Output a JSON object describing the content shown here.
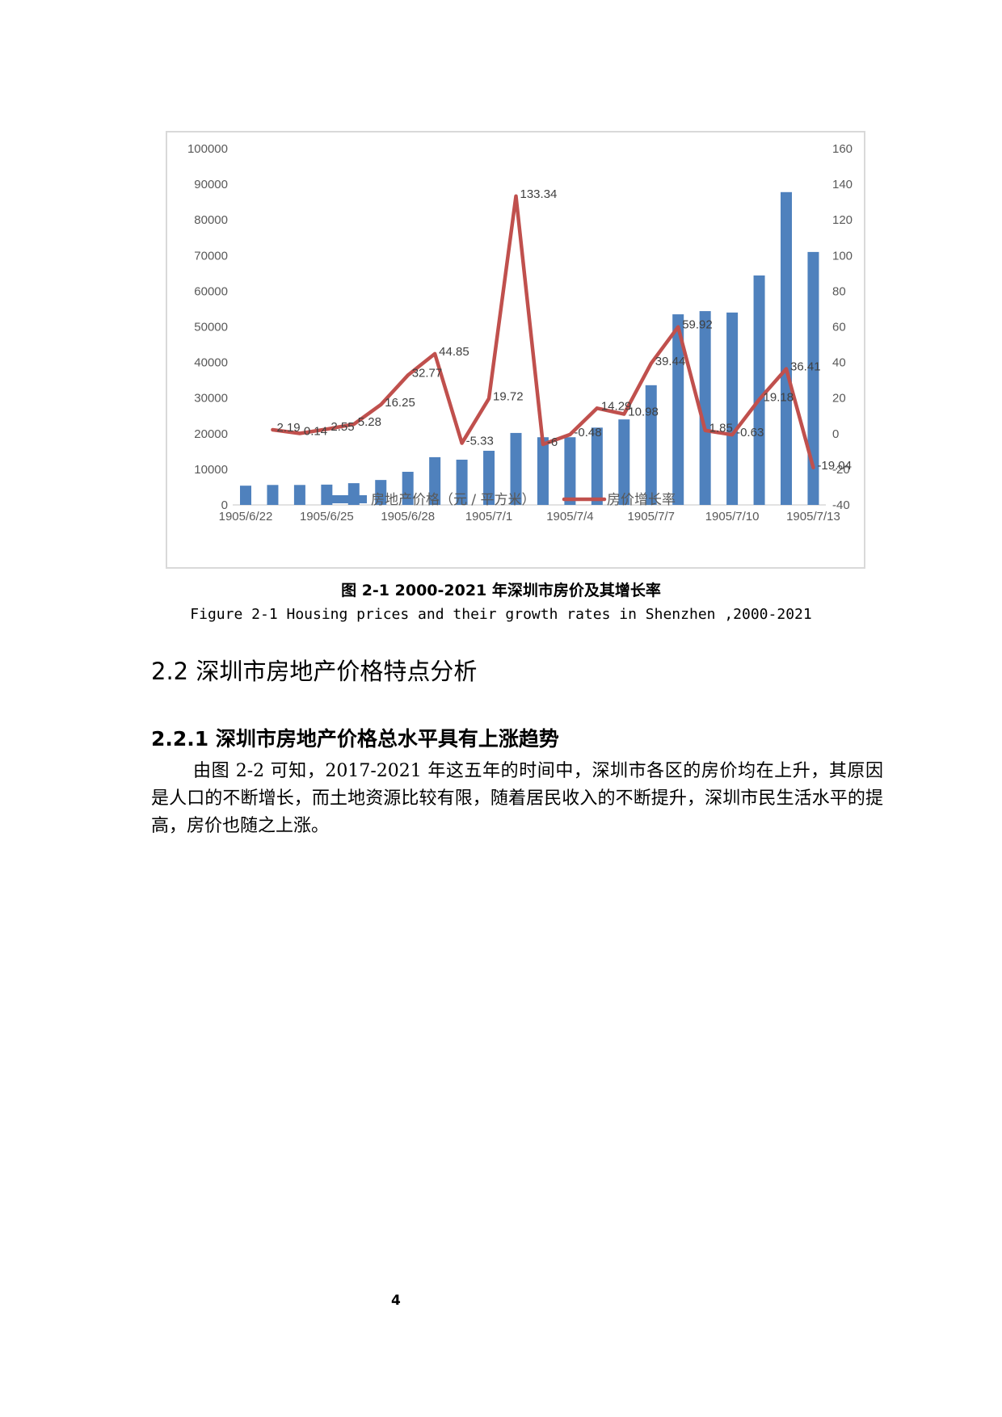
{
  "chart_data": {
    "type": "bar+line",
    "title": "",
    "categories": [
      "1905/6/22",
      "1905/6/23",
      "1905/6/24",
      "1905/6/25",
      "1905/6/26",
      "1905/6/27",
      "1905/6/28",
      "1905/6/29",
      "1905/6/30",
      "1905/7/1",
      "1905/7/2",
      "1905/7/3",
      "1905/7/4",
      "1905/7/5",
      "1905/7/6",
      "1905/7/7",
      "1905/7/8",
      "1905/7/9",
      "1905/7/10",
      "1905/7/11",
      "1905/7/12",
      "1905/7/13"
    ],
    "x_tick_labels": [
      "1905/6/22",
      "1905/6/25",
      "1905/6/28",
      "1905/7/1",
      "1905/7/4",
      "1905/7/7",
      "1905/7/10",
      "1905/7/13"
    ],
    "series": [
      {
        "name": "房地产价格（元 / 平方米）",
        "type": "bar",
        "axis": "left",
        "color": "#4f81bd",
        "values": [
          5400,
          5600,
          5600,
          5700,
          6100,
          7000,
          9300,
          13400,
          12700,
          15200,
          20200,
          19000,
          19000,
          21700,
          24000,
          33600,
          53500,
          54400,
          54000,
          64400,
          87800,
          71000
        ]
      },
      {
        "name": "房价增长率",
        "type": "line",
        "axis": "right",
        "color": "#c0504d",
        "start_index": 1,
        "values": [
          2.19,
          0.14,
          2.55,
          5.28,
          16.25,
          32.77,
          44.85,
          -5.33,
          19.72,
          133.34,
          -6,
          -0.48,
          14.29,
          10.98,
          39.44,
          59.92,
          1.85,
          -0.63,
          19.18,
          36.41,
          -19.04
        ],
        "labels": [
          "2.19",
          "0.14",
          "2.55",
          "5.28",
          "16.25",
          "32.77",
          "44.85",
          "-5.33",
          "19.72",
          "133.34",
          "-6",
          "-0.48",
          "14.29",
          "10.98",
          "39.44",
          "59.92",
          "1.85",
          "-0.63",
          "19.18",
          "36.41",
          "-19.04"
        ]
      }
    ],
    "y_left": {
      "min": 0,
      "max": 100000,
      "step": 10000,
      "ticks": [
        "0",
        "10000",
        "20000",
        "30000",
        "40000",
        "50000",
        "60000",
        "70000",
        "80000",
        "90000",
        "100000"
      ]
    },
    "y_right": {
      "min": -40,
      "max": 160,
      "step": 20,
      "ticks": [
        "-40",
        "-20",
        "0",
        "20",
        "40",
        "60",
        "80",
        "100",
        "120",
        "140",
        "160"
      ]
    },
    "xlabel": "",
    "ylabel": "",
    "grid": false,
    "legend_position": "bottom"
  },
  "figure": {
    "caption_cn": "图 2-1   2000-2021 年深圳市房价及其增长率",
    "caption_en": "Figure 2-1 Housing prices and their growth rates in Shenzhen ,2000-2021"
  },
  "section": {
    "heading": "2.2 深圳市房地产价格特点分析",
    "subheading": "2.2.1 深圳市房地产价格总水平具有上涨趋势",
    "paragraph": "由图 2-2 可知，2017-2021 年这五年的时间中，深圳市各区的房价均在上升，其原因是人口的不断增长，而土地资源比较有限，随着居民收入的不断提升，深圳市民生活水平的提高，房价也随之上涨。"
  },
  "footer": {
    "page_number": "4"
  }
}
